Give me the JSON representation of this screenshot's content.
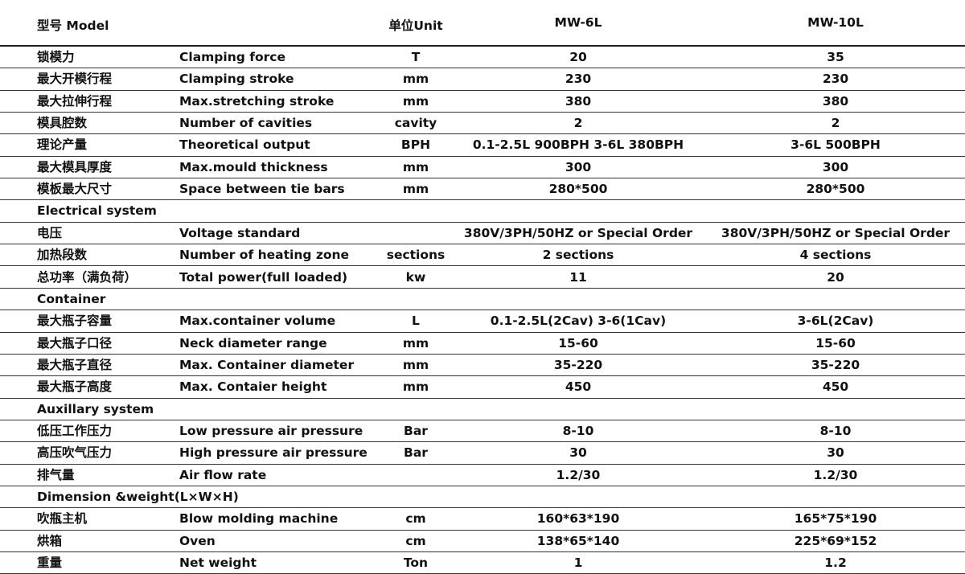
{
  "header": {
    "model": "型号 Model",
    "unit": "单位Unit",
    "col1": "MW-6L",
    "col2": "MW-10L"
  },
  "rows": [
    {
      "cn": "锁模力",
      "en": "Clamping force",
      "unit": "T",
      "v1": "20",
      "v2": "35"
    },
    {
      "cn": "最大开模行程",
      "en": "Clamping stroke",
      "unit": "mm",
      "v1": "230",
      "v2": "230"
    },
    {
      "cn": "最大拉伸行程",
      "en": "Max.stretching stroke",
      "unit": "mm",
      "v1": "380",
      "v2": "380"
    },
    {
      "cn": "模具腔数",
      "en": "Number of cavities",
      "unit": "cavity",
      "v1": "2",
      "v2": "2"
    },
    {
      "cn": "理论产量",
      "en": "Theoretical output",
      "unit": "BPH",
      "v1": "0.1-2.5L 900BPH 3-6L 380BPH",
      "v2": "3-6L 500BPH"
    },
    {
      "cn": "最大模具厚度",
      "en": "Max.mould thickness",
      "unit": "mm",
      "v1": "300",
      "v2": "300"
    },
    {
      "cn": "模板最大尺寸",
      "en": "Space between tie bars",
      "unit": "mm",
      "v1": "280*500",
      "v2": "280*500"
    },
    {
      "section": "Electrical system"
    },
    {
      "cn": "电压",
      "en": "Voltage standard",
      "unit": "",
      "v1": "380V/3PH/50HZ or Special Order",
      "v2": "380V/3PH/50HZ or Special Order"
    },
    {
      "cn": "加热段数",
      "en": "Number of heating zone",
      "unit": "sections",
      "v1": "2 sections",
      "v2": "4 sections"
    },
    {
      "cn": "总功率（满负荷）",
      "en": "Total power(full loaded)",
      "unit": "kw",
      "v1": "11",
      "v2": "20"
    },
    {
      "section": "Container"
    },
    {
      "cn": "最大瓶子容量",
      "en": "Max.container volume",
      "unit": "L",
      "v1": "0.1-2.5L(2Cav) 3-6(1Cav)",
      "v2": "3-6L(2Cav)"
    },
    {
      "cn": "最大瓶子口径",
      "en": "Neck diameter range",
      "unit": "mm",
      "v1": "15-60",
      "v2": "15-60"
    },
    {
      "cn": "最大瓶子直径",
      "en": "Max. Container diameter",
      "unit": "mm",
      "v1": "35-220",
      "v2": "35-220"
    },
    {
      "cn": "最大瓶子高度",
      "en": "Max. Contaier height",
      "unit": "mm",
      "v1": "450",
      "v2": "450"
    },
    {
      "section": "Auxillary system"
    },
    {
      "cn": "低压工作压力",
      "en": "Low pressure air pressure",
      "unit": "Bar",
      "v1": "8-10",
      "v2": "8-10"
    },
    {
      "cn": "高压吹气压力",
      "en": "High pressure air pressure",
      "unit": "Bar",
      "v1": "30",
      "v2": "30"
    },
    {
      "cn": "排气量",
      "en": "Air flow rate",
      "unit": "",
      "v1": "1.2/30",
      "v2": "1.2/30"
    },
    {
      "section": "Dimension &weight(L×W×H)"
    },
    {
      "cn": "吹瓶主机",
      "en": "Blow molding machine",
      "unit": "cm",
      "v1": "160*63*190",
      "v2": "165*75*190"
    },
    {
      "cn": "烘箱",
      "en": "Oven",
      "unit": "cm",
      "v1": "138*65*140",
      "v2": "225*69*152"
    },
    {
      "cn": "重量",
      "en": "Net weight",
      "unit": "Ton",
      "v1": "1",
      "v2": "1.2"
    }
  ]
}
